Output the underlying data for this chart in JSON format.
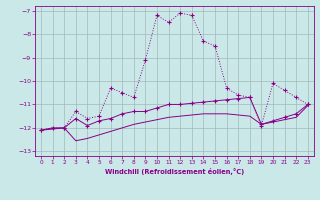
{
  "xlabel": "Windchill (Refroidissement éolien,°C)",
  "background_color": "#cbe8e8",
  "grid_color": "#a0b8b8",
  "line_color": "#880088",
  "xlim": [
    -0.5,
    23.5
  ],
  "ylim": [
    -13.2,
    -6.8
  ],
  "xticks": [
    0,
    1,
    2,
    3,
    4,
    5,
    6,
    7,
    8,
    9,
    10,
    11,
    12,
    13,
    14,
    15,
    16,
    17,
    18,
    19,
    20,
    21,
    22,
    23
  ],
  "yticks": [
    -13,
    -12,
    -11,
    -10,
    -9,
    -8,
    -7
  ],
  "line1_x": [
    0,
    1,
    2,
    3,
    4,
    5,
    6,
    7,
    8,
    9,
    10,
    11,
    12,
    13,
    14,
    15,
    16,
    17,
    18,
    19,
    20,
    21,
    22,
    23
  ],
  "line1_y": [
    -12.1,
    -12.0,
    -12.0,
    -11.3,
    -11.6,
    -11.5,
    -10.3,
    -10.5,
    -10.7,
    -9.1,
    -7.2,
    -7.5,
    -7.1,
    -7.2,
    -8.3,
    -8.5,
    -10.3,
    -10.6,
    -10.7,
    -11.9,
    -10.1,
    -10.4,
    -10.7,
    -11.0
  ],
  "line2_x": [
    0,
    2,
    3,
    4,
    5,
    6,
    7,
    8,
    9,
    10,
    11,
    12,
    13,
    14,
    15,
    16,
    17,
    18,
    19,
    20,
    21,
    22,
    23
  ],
  "line2_y": [
    -12.1,
    -12.0,
    -11.6,
    -11.9,
    -11.7,
    -11.6,
    -11.4,
    -11.3,
    -11.3,
    -11.15,
    -11.0,
    -11.0,
    -10.95,
    -10.9,
    -10.85,
    -10.8,
    -10.75,
    -10.7,
    -11.85,
    -11.7,
    -11.55,
    -11.4,
    -11.0
  ],
  "line3_x": [
    0,
    1,
    2,
    3,
    4,
    5,
    6,
    7,
    8,
    9,
    10,
    11,
    12,
    13,
    14,
    15,
    16,
    17,
    18,
    19,
    20,
    21,
    22,
    23
  ],
  "line3_y": [
    -12.1,
    -12.0,
    -12.0,
    -12.55,
    -12.45,
    -12.3,
    -12.15,
    -12.0,
    -11.85,
    -11.75,
    -11.65,
    -11.55,
    -11.5,
    -11.45,
    -11.4,
    -11.4,
    -11.4,
    -11.45,
    -11.5,
    -11.85,
    -11.75,
    -11.65,
    -11.55,
    -11.05
  ]
}
